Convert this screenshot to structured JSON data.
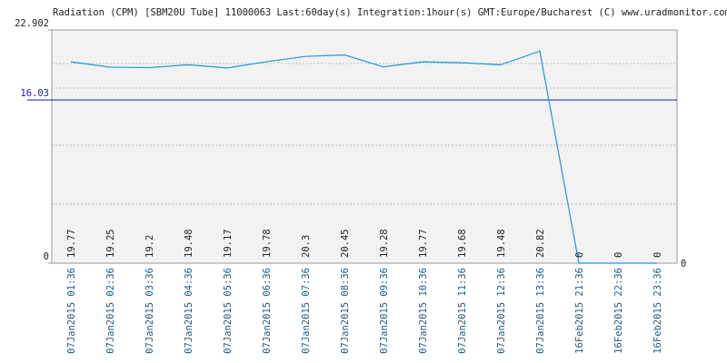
{
  "chart_data": {
    "type": "line",
    "title": "Radiation (CPM) [SBM20U Tube] 11000063 Last:60day(s) Integration:1hour(s) GMT:Europe/Bucharest (C) www.uradmonitor.com",
    "categories": [
      "07Jan2015 01:36",
      "07Jan2015 02:36",
      "07Jan2015 03:36",
      "07Jan2015 04:36",
      "07Jan2015 05:36",
      "07Jan2015 06:36",
      "07Jan2015 07:36",
      "07Jan2015 08:36",
      "07Jan2015 09:36",
      "07Jan2015 10:36",
      "07Jan2015 11:36",
      "07Jan2015 12:36",
      "07Jan2015 13:36",
      "16Feb2015 21:36",
      "16Feb2015 22:36",
      "16Feb2015 23:36"
    ],
    "values": [
      19.77,
      19.25,
      19.2,
      19.48,
      19.17,
      19.78,
      20.3,
      20.45,
      19.28,
      19.77,
      19.68,
      19.48,
      20.82,
      0,
      0,
      0
    ],
    "color": "#1a9ad6",
    "ylim": [
      0,
      22.902
    ],
    "yticks": [
      0,
      16.03,
      22.902
    ],
    "average_color": "#1a1aa6"
  }
}
